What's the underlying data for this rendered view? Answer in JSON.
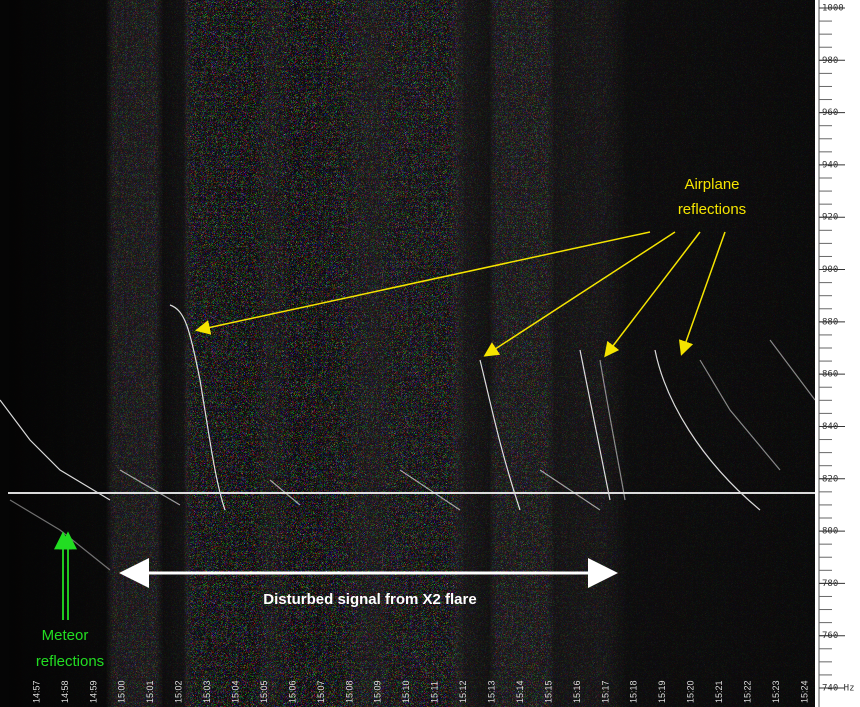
{
  "frequency_axis": {
    "labels": [
      "1000",
      "980",
      "960",
      "940",
      "920",
      "900",
      "880",
      "860",
      "840",
      "820",
      "800",
      "780",
      "760",
      "740 Hz"
    ]
  },
  "time_axis": {
    "labels": [
      "14:57",
      "14:58",
      "14:59",
      "15:00",
      "15:01",
      "15:02",
      "15:03",
      "15:04",
      "15:05",
      "15:06",
      "15:07",
      "15:08",
      "15:09",
      "15:10",
      "15:11",
      "15:12",
      "15:13",
      "15:14",
      "15:15",
      "15:16",
      "15:17",
      "15:18",
      "15:19",
      "15:20",
      "15:21",
      "15:22",
      "15:23",
      "15:24"
    ]
  },
  "annotations": {
    "airplane": [
      "Airplane",
      "reflections"
    ],
    "flare": "Disturbed signal from X2 flare",
    "meteor": [
      "Meteor",
      "reflections"
    ]
  }
}
